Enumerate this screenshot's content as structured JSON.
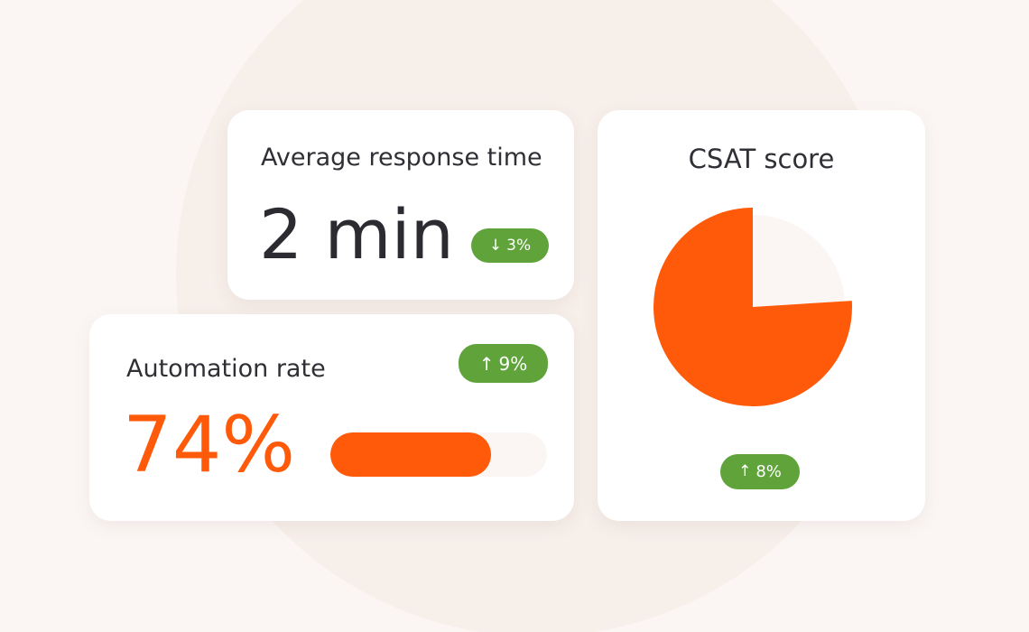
{
  "colors": {
    "page_background": "#fbf6f4",
    "card_background": "#ffffff",
    "accent_orange": "#fe5a0a",
    "badge_green": "#5fa33a",
    "track_light": "#fbf6f4",
    "text_dark": "#2f2f35"
  },
  "response_time": {
    "title": "Average response time",
    "value": "2 min",
    "badge": {
      "icon": "arrow-down-icon",
      "arrow": "↓",
      "text": "3%"
    }
  },
  "automation": {
    "title": "Automation rate",
    "value": "74%",
    "progress": 0.74,
    "badge": {
      "icon": "arrow-up-icon",
      "arrow": "↑",
      "text": "9%"
    }
  },
  "csat": {
    "title": "CSAT score",
    "badge": {
      "icon": "arrow-up-icon",
      "arrow": "↑",
      "text": "8%"
    }
  },
  "chart_data": {
    "type": "pie",
    "title": "CSAT score",
    "slices": [
      {
        "value": 76,
        "color": "#fe5a0a"
      },
      {
        "value": 24,
        "color": "#fbf6f4"
      }
    ]
  }
}
